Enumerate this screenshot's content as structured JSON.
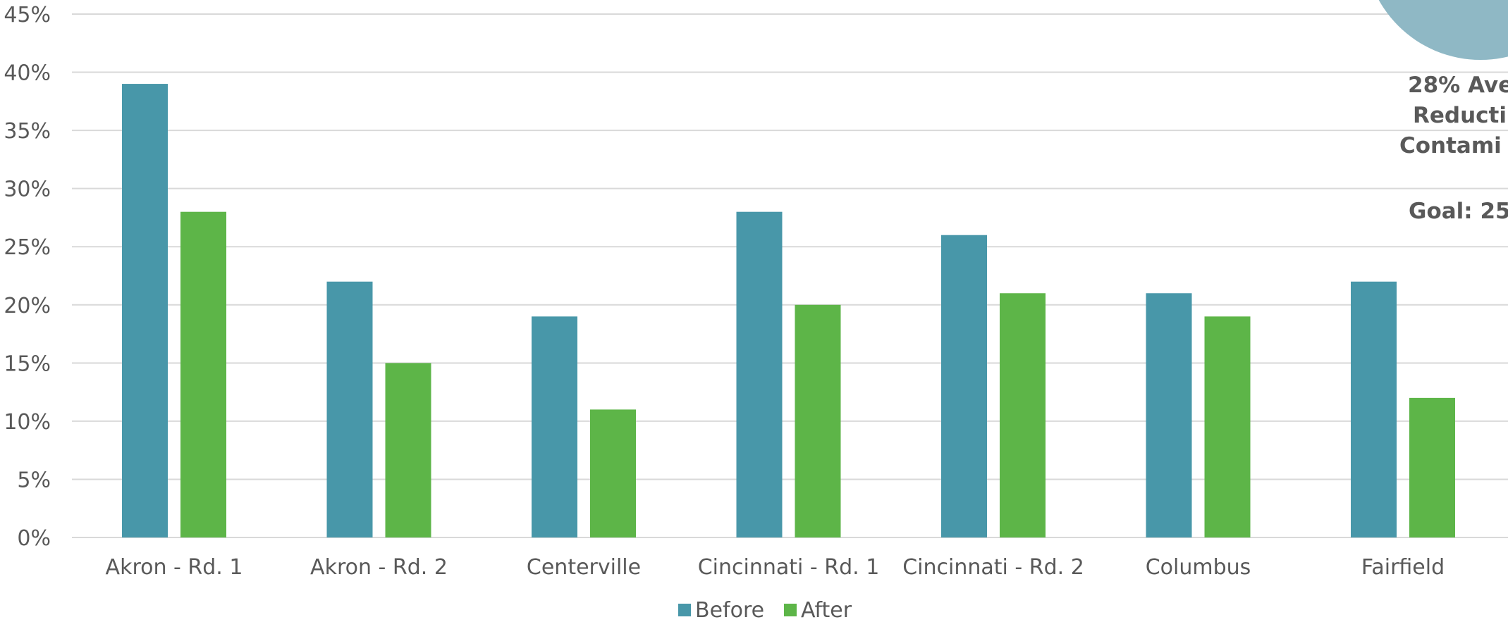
{
  "chart_data": {
    "type": "bar",
    "categories": [
      "Akron - Rd. 1",
      "Akron - Rd. 2",
      "Centerville",
      "Cincinnati - Rd. 1",
      "Cincinnati - Rd. 2",
      "Columbus",
      "Fairfield"
    ],
    "series": [
      {
        "name": "Before",
        "values": [
          39,
          22,
          19,
          28,
          26,
          21,
          22
        ],
        "color": "#4897A9"
      },
      {
        "name": "After",
        "values": [
          28,
          15,
          11,
          20,
          21,
          19,
          12
        ],
        "color": "#5DB548"
      }
    ],
    "ylim": [
      0,
      45
    ],
    "yticks": [
      "0%",
      "5%",
      "10%",
      "15%",
      "20%",
      "25%",
      "30%",
      "35%",
      "40%",
      "45%"
    ],
    "grid": true,
    "legend_position": "bottom",
    "title": "",
    "xlabel": "",
    "ylabel": ""
  },
  "callout": {
    "lines": [
      "28% Ave",
      "Reducti",
      "Contami"
    ],
    "goal": "Goal: 25",
    "circle_color": "#8FB8C5"
  }
}
